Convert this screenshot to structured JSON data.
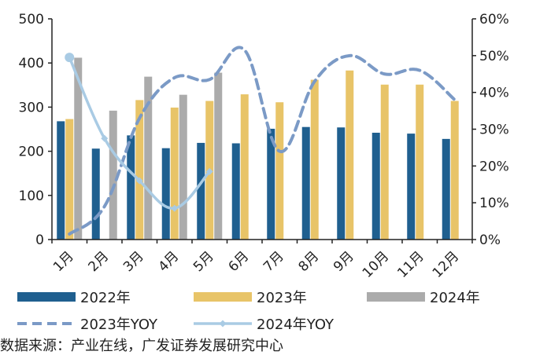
{
  "chart_data": {
    "type": "bar",
    "categories": [
      "1月",
      "2月",
      "3月",
      "4月",
      "5月",
      "6月",
      "7月",
      "8月",
      "9月",
      "10月",
      "11月",
      "12月"
    ],
    "series": [
      {
        "name": "2022年",
        "kind": "bar",
        "axis": "left",
        "color": "#1F5F8F",
        "values": [
          268,
          206,
          236,
          207,
          219,
          218,
          251,
          255,
          254,
          242,
          240,
          228
        ]
      },
      {
        "name": "2023年",
        "kind": "bar",
        "axis": "left",
        "color": "#E8C468",
        "values": [
          273,
          null,
          316,
          299,
          314,
          329,
          311,
          362,
          383,
          351,
          351,
          314
        ]
      },
      {
        "name": "2024年",
        "kind": "bar",
        "axis": "left",
        "color": "#ABABAB",
        "values": [
          412,
          292,
          369,
          328,
          378,
          null,
          null,
          null,
          null,
          null,
          null,
          null
        ]
      },
      {
        "name": "2023年YOY",
        "kind": "line",
        "axis": "right",
        "color": "#7B9AC6",
        "dash": true,
        "values": [
          1.5,
          9,
          33,
          44,
          43.5,
          51.5,
          24,
          43,
          50,
          45,
          46,
          38
        ]
      },
      {
        "name": "2024年YOY",
        "kind": "line",
        "axis": "right",
        "color": "#A9CBE4",
        "marker": "diamond",
        "values": [
          49.5,
          27.5,
          16,
          8.5,
          18.5,
          null,
          null,
          null,
          null,
          null,
          null,
          null
        ]
      }
    ],
    "y_left": {
      "min": 0,
      "max": 500,
      "ticks": [
        "0",
        "100",
        "200",
        "300",
        "400",
        "500"
      ]
    },
    "y_right": {
      "min": 0,
      "max": 60,
      "ticks": [
        "0%",
        "10%",
        "20%",
        "30%",
        "40%",
        "50%",
        "60%"
      ]
    },
    "legend_placement": "bottom",
    "source": "数据来源：产业在线，广发证券发展研究中心"
  }
}
